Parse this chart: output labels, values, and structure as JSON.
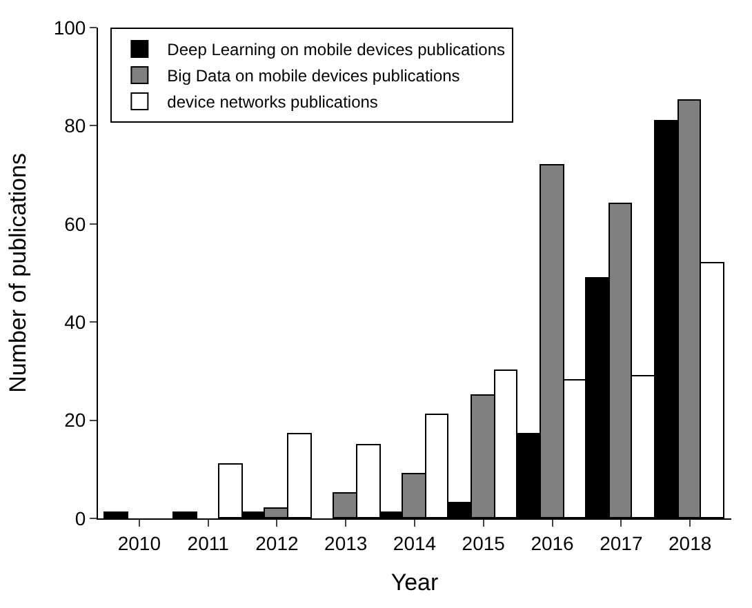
{
  "chart_data": {
    "type": "bar",
    "xlabel": "Year",
    "ylabel": "Number of publications",
    "categories": [
      "2010",
      "2011",
      "2012",
      "2013",
      "2014",
      "2015",
      "2016",
      "2017",
      "2018"
    ],
    "series": [
      {
        "name": "Deep Learning on mobile devices publications",
        "color": "#000000",
        "values": [
          1,
          1,
          1,
          0,
          1,
          3,
          17,
          49,
          81
        ]
      },
      {
        "name": "Big Data on mobile devices publications",
        "color": "#808080",
        "values": [
          0,
          0,
          2,
          5,
          9,
          25,
          72,
          64,
          85
        ]
      },
      {
        "name": "device networks publications",
        "color": "#ffffff",
        "values": [
          0,
          11,
          17,
          15,
          21,
          30,
          28,
          29,
          52
        ]
      }
    ],
    "ylim": [
      0,
      100
    ],
    "yticks": [
      0,
      20,
      40,
      60,
      80,
      100
    ],
    "legend": "top left"
  }
}
